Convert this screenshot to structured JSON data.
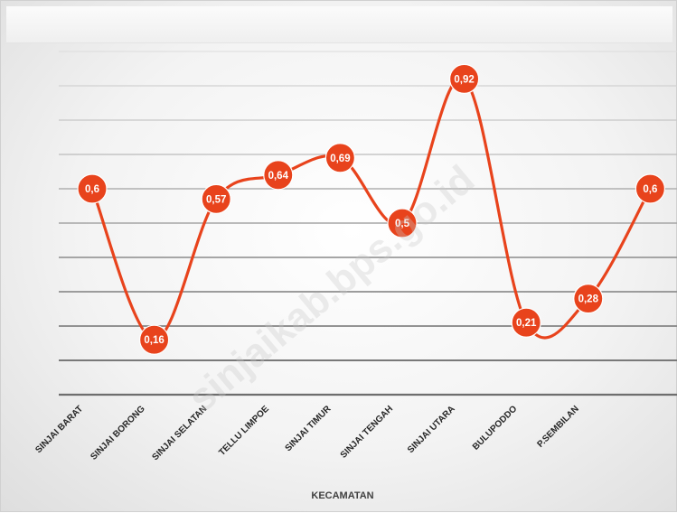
{
  "chart_data": {
    "type": "line",
    "title": "",
    "xlabel": "KECAMATAN",
    "ylabel": "",
    "categories": [
      "SINJAI BARAT",
      "SINJAI BORONG",
      "SINJAI SELATAN",
      "TELLU LIMPOE",
      "SINJAI TIMUR",
      "SINJAI TENGAH",
      "SINJAI UTARA",
      "BULUPODDO",
      "P.SEMBILAN",
      ""
    ],
    "values": [
      0.6,
      0.16,
      0.57,
      0.64,
      0.69,
      0.5,
      0.92,
      0.21,
      0.28,
      0.6
    ],
    "value_labels": [
      "0,6",
      "0,16",
      "0,57",
      "0,64",
      "0,69",
      "0,5",
      "0,92",
      "0,21",
      "0,28",
      "0,6"
    ],
    "ylim": [
      0,
      1
    ],
    "grid": true,
    "smooth": true,
    "color": "#e8431c",
    "legend": "none"
  },
  "watermark": "sinjaikab.bps.go.id"
}
